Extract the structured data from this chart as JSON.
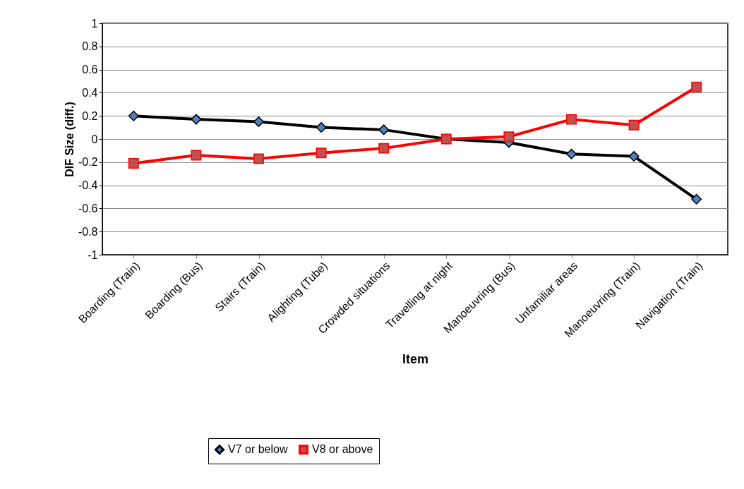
{
  "chart_data": {
    "type": "line",
    "xlabel": "Item",
    "ylabel": "DIF Size (diff.)",
    "categories": [
      "Boarding (Train)",
      "Boarding (Bus)",
      "Stairs (Train)",
      "Alighting (Tube)",
      "Crowded situations",
      "Travelling at night",
      "Manoeuvring (Bus)",
      "Unfamiliar areas",
      "Manoeuvring (Train)",
      "Navigation (Train)"
    ],
    "series": [
      {
        "name": "V7 or below",
        "color": "#000000",
        "marker": "diamond",
        "values": [
          0.2,
          0.17,
          0.15,
          0.1,
          0.08,
          0,
          -0.03,
          -0.13,
          -0.15,
          -0.52
        ]
      },
      {
        "name": "V8 or above",
        "color": "#ff0000",
        "marker": "square",
        "values": [
          -0.21,
          -0.14,
          -0.17,
          -0.12,
          -0.08,
          0,
          0.02,
          0.17,
          0.12,
          0.45
        ]
      }
    ],
    "ylim": [
      -1,
      1
    ],
    "yticks": [
      -1,
      -0.8,
      -0.6,
      -0.4,
      -0.2,
      0,
      0.2,
      0.4,
      0.6,
      0.8,
      1
    ],
    "grid": "y",
    "legend": "bottom",
    "line_style": "solid"
  }
}
